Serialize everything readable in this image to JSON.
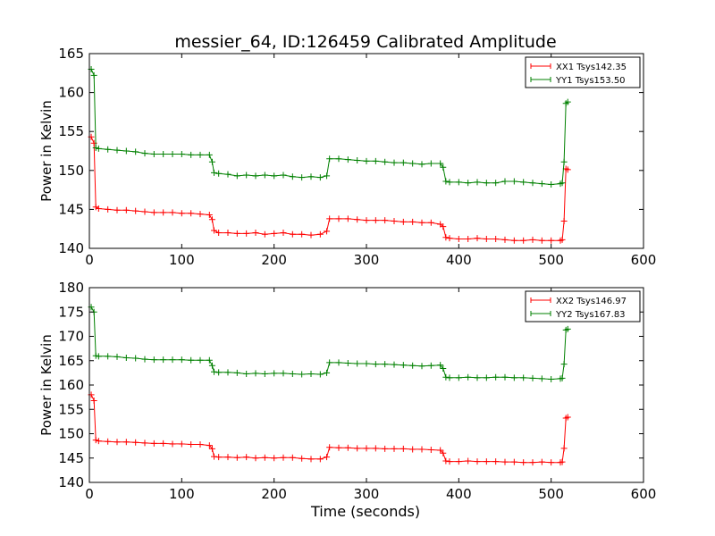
{
  "figure": {
    "title": "messier_64, ID:126459 Calibrated Amplitude",
    "xlabel": "Time (seconds)"
  },
  "chart_data": [
    {
      "type": "line",
      "ylabel": "Power in Kelvin",
      "xlim": [
        0,
        600
      ],
      "ylim": [
        140,
        165
      ],
      "x_ticks": [
        0,
        100,
        200,
        300,
        400,
        500,
        600
      ],
      "y_ticks": [
        140,
        145,
        150,
        155,
        160,
        165
      ],
      "legend_position": "top-right",
      "grid": false,
      "series": [
        {
          "name": "XX1 Tsys142.35",
          "color": "#ff0000",
          "marker": "plus",
          "points": [
            [
              2,
              154.3
            ],
            [
              5,
              153.5
            ],
            [
              7,
              145.3
            ],
            [
              10,
              145.1
            ],
            [
              20,
              145.0
            ],
            [
              30,
              144.9
            ],
            [
              40,
              144.9
            ],
            [
              50,
              144.8
            ],
            [
              60,
              144.7
            ],
            [
              70,
              144.6
            ],
            [
              80,
              144.6
            ],
            [
              90,
              144.6
            ],
            [
              100,
              144.5
            ],
            [
              110,
              144.5
            ],
            [
              120,
              144.4
            ],
            [
              130,
              144.3
            ],
            [
              133,
              143.7
            ],
            [
              135,
              142.3
            ],
            [
              140,
              142.0
            ],
            [
              150,
              142.0
            ],
            [
              160,
              141.9
            ],
            [
              170,
              141.9
            ],
            [
              180,
              142.0
            ],
            [
              190,
              141.8
            ],
            [
              200,
              141.9
            ],
            [
              210,
              142.0
            ],
            [
              220,
              141.8
            ],
            [
              230,
              141.8
            ],
            [
              240,
              141.7
            ],
            [
              250,
              141.8
            ],
            [
              257,
              142.2
            ],
            [
              260,
              143.8
            ],
            [
              270,
              143.8
            ],
            [
              280,
              143.8
            ],
            [
              290,
              143.7
            ],
            [
              300,
              143.6
            ],
            [
              310,
              143.6
            ],
            [
              320,
              143.6
            ],
            [
              330,
              143.5
            ],
            [
              340,
              143.4
            ],
            [
              350,
              143.4
            ],
            [
              360,
              143.3
            ],
            [
              370,
              143.3
            ],
            [
              380,
              143.1
            ],
            [
              383,
              142.8
            ],
            [
              386,
              141.4
            ],
            [
              390,
              141.3
            ],
            [
              400,
              141.2
            ],
            [
              410,
              141.2
            ],
            [
              420,
              141.3
            ],
            [
              430,
              141.2
            ],
            [
              440,
              141.2
            ],
            [
              450,
              141.1
            ],
            [
              460,
              141.0
            ],
            [
              470,
              141.0
            ],
            [
              480,
              141.1
            ],
            [
              490,
              141.0
            ],
            [
              500,
              141.0
            ],
            [
              510,
              141.0
            ],
            [
              512,
              141.1
            ],
            [
              514,
              143.5
            ],
            [
              516,
              150.2
            ],
            [
              518,
              150.1
            ]
          ]
        },
        {
          "name": "YY1 Tsys153.50",
          "color": "#008000",
          "marker": "plus",
          "points": [
            [
              2,
              163.0
            ],
            [
              5,
              162.2
            ],
            [
              7,
              152.9
            ],
            [
              10,
              152.8
            ],
            [
              20,
              152.7
            ],
            [
              30,
              152.6
            ],
            [
              40,
              152.5
            ],
            [
              50,
              152.4
            ],
            [
              60,
              152.2
            ],
            [
              70,
              152.1
            ],
            [
              80,
              152.1
            ],
            [
              90,
              152.1
            ],
            [
              100,
              152.1
            ],
            [
              110,
              152.0
            ],
            [
              120,
              152.0
            ],
            [
              130,
              152.0
            ],
            [
              133,
              151.1
            ],
            [
              135,
              149.7
            ],
            [
              140,
              149.6
            ],
            [
              150,
              149.5
            ],
            [
              160,
              149.3
            ],
            [
              170,
              149.4
            ],
            [
              180,
              149.3
            ],
            [
              190,
              149.4
            ],
            [
              200,
              149.3
            ],
            [
              210,
              149.4
            ],
            [
              220,
              149.2
            ],
            [
              230,
              149.1
            ],
            [
              240,
              149.2
            ],
            [
              250,
              149.1
            ],
            [
              257,
              149.3
            ],
            [
              260,
              151.5
            ],
            [
              270,
              151.5
            ],
            [
              280,
              151.4
            ],
            [
              290,
              151.3
            ],
            [
              300,
              151.2
            ],
            [
              310,
              151.2
            ],
            [
              320,
              151.1
            ],
            [
              330,
              151.0
            ],
            [
              340,
              151.0
            ],
            [
              350,
              150.9
            ],
            [
              360,
              150.8
            ],
            [
              370,
              150.9
            ],
            [
              380,
              150.9
            ],
            [
              383,
              150.4
            ],
            [
              386,
              148.6
            ],
            [
              390,
              148.5
            ],
            [
              400,
              148.5
            ],
            [
              410,
              148.4
            ],
            [
              420,
              148.5
            ],
            [
              430,
              148.4
            ],
            [
              440,
              148.4
            ],
            [
              450,
              148.6
            ],
            [
              460,
              148.6
            ],
            [
              470,
              148.5
            ],
            [
              480,
              148.4
            ],
            [
              490,
              148.3
            ],
            [
              500,
              148.2
            ],
            [
              510,
              148.3
            ],
            [
              512,
              148.4
            ],
            [
              514,
              151.1
            ],
            [
              516,
              158.6
            ],
            [
              518,
              158.8
            ]
          ]
        }
      ]
    },
    {
      "type": "line",
      "ylabel": "Power in Kelvin",
      "xlabel": "Time (seconds)",
      "xlim": [
        0,
        600
      ],
      "ylim": [
        140,
        180
      ],
      "x_ticks": [
        0,
        100,
        200,
        300,
        400,
        500,
        600
      ],
      "y_ticks": [
        140,
        145,
        150,
        155,
        160,
        165,
        170,
        175,
        180
      ],
      "legend_position": "top-right",
      "grid": false,
      "series": [
        {
          "name": "XX2 Tsys146.97",
          "color": "#ff0000",
          "marker": "plus",
          "points": [
            [
              2,
              158.0
            ],
            [
              5,
              156.8
            ],
            [
              7,
              148.7
            ],
            [
              10,
              148.5
            ],
            [
              20,
              148.4
            ],
            [
              30,
              148.3
            ],
            [
              40,
              148.3
            ],
            [
              50,
              148.2
            ],
            [
              60,
              148.1
            ],
            [
              70,
              148.0
            ],
            [
              80,
              148.0
            ],
            [
              90,
              147.9
            ],
            [
              100,
              147.9
            ],
            [
              110,
              147.8
            ],
            [
              120,
              147.8
            ],
            [
              130,
              147.6
            ],
            [
              133,
              146.9
            ],
            [
              135,
              145.3
            ],
            [
              140,
              145.2
            ],
            [
              150,
              145.2
            ],
            [
              160,
              145.1
            ],
            [
              170,
              145.2
            ],
            [
              180,
              145.0
            ],
            [
              190,
              145.1
            ],
            [
              200,
              145.0
            ],
            [
              210,
              145.1
            ],
            [
              220,
              145.1
            ],
            [
              230,
              144.9
            ],
            [
              240,
              144.8
            ],
            [
              250,
              144.8
            ],
            [
              257,
              145.2
            ],
            [
              260,
              147.2
            ],
            [
              270,
              147.1
            ],
            [
              280,
              147.1
            ],
            [
              290,
              147.0
            ],
            [
              300,
              147.0
            ],
            [
              310,
              147.0
            ],
            [
              320,
              146.9
            ],
            [
              330,
              146.9
            ],
            [
              340,
              146.9
            ],
            [
              350,
              146.8
            ],
            [
              360,
              146.8
            ],
            [
              370,
              146.7
            ],
            [
              380,
              146.6
            ],
            [
              383,
              146.0
            ],
            [
              386,
              144.4
            ],
            [
              390,
              144.3
            ],
            [
              400,
              144.3
            ],
            [
              410,
              144.4
            ],
            [
              420,
              144.3
            ],
            [
              430,
              144.3
            ],
            [
              440,
              144.3
            ],
            [
              450,
              144.2
            ],
            [
              460,
              144.2
            ],
            [
              470,
              144.1
            ],
            [
              480,
              144.1
            ],
            [
              490,
              144.2
            ],
            [
              500,
              144.1
            ],
            [
              510,
              144.1
            ],
            [
              512,
              144.2
            ],
            [
              514,
              147.0
            ],
            [
              516,
              153.2
            ],
            [
              518,
              153.4
            ]
          ]
        },
        {
          "name": "YY2 Tsys167.83",
          "color": "#008000",
          "marker": "plus",
          "points": [
            [
              2,
              176.0
            ],
            [
              5,
              175.0
            ],
            [
              7,
              166.0
            ],
            [
              10,
              165.9
            ],
            [
              20,
              165.9
            ],
            [
              30,
              165.8
            ],
            [
              40,
              165.6
            ],
            [
              50,
              165.5
            ],
            [
              60,
              165.3
            ],
            [
              70,
              165.2
            ],
            [
              80,
              165.2
            ],
            [
              90,
              165.2
            ],
            [
              100,
              165.2
            ],
            [
              110,
              165.1
            ],
            [
              120,
              165.1
            ],
            [
              130,
              165.1
            ],
            [
              133,
              164.0
            ],
            [
              135,
              162.7
            ],
            [
              140,
              162.6
            ],
            [
              150,
              162.6
            ],
            [
              160,
              162.5
            ],
            [
              170,
              162.3
            ],
            [
              180,
              162.4
            ],
            [
              190,
              162.3
            ],
            [
              200,
              162.4
            ],
            [
              210,
              162.4
            ],
            [
              220,
              162.3
            ],
            [
              230,
              162.2
            ],
            [
              240,
              162.3
            ],
            [
              250,
              162.2
            ],
            [
              257,
              162.5
            ],
            [
              260,
              164.6
            ],
            [
              270,
              164.6
            ],
            [
              280,
              164.5
            ],
            [
              290,
              164.4
            ],
            [
              300,
              164.4
            ],
            [
              310,
              164.3
            ],
            [
              320,
              164.3
            ],
            [
              330,
              164.2
            ],
            [
              340,
              164.1
            ],
            [
              350,
              164.0
            ],
            [
              360,
              163.9
            ],
            [
              370,
              164.0
            ],
            [
              380,
              164.1
            ],
            [
              383,
              163.4
            ],
            [
              386,
              161.6
            ],
            [
              390,
              161.5
            ],
            [
              400,
              161.5
            ],
            [
              410,
              161.6
            ],
            [
              420,
              161.5
            ],
            [
              430,
              161.5
            ],
            [
              440,
              161.6
            ],
            [
              450,
              161.6
            ],
            [
              460,
              161.5
            ],
            [
              470,
              161.5
            ],
            [
              480,
              161.4
            ],
            [
              490,
              161.3
            ],
            [
              500,
              161.2
            ],
            [
              510,
              161.3
            ],
            [
              512,
              161.4
            ],
            [
              514,
              164.3
            ],
            [
              516,
              171.3
            ],
            [
              518,
              171.5
            ]
          ]
        }
      ]
    }
  ]
}
